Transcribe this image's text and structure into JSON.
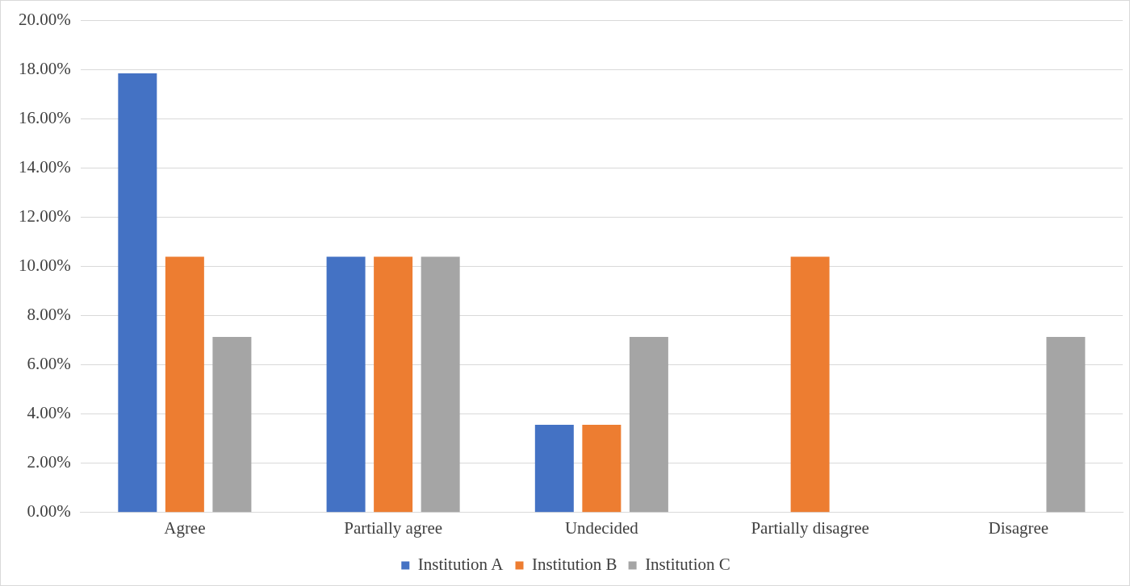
{
  "chart_data": {
    "type": "bar",
    "categories": [
      "Agree",
      "Partially agree",
      "Undecided",
      "Partially disagree",
      "Disagree"
    ],
    "series": [
      {
        "name": "Institution A",
        "color": "#4472c4",
        "values": [
          17.86,
          10.4,
          3.57,
          0,
          0
        ]
      },
      {
        "name": "Institution B",
        "color": "#ed7d31",
        "values": [
          10.4,
          10.4,
          3.57,
          10.4,
          0
        ]
      },
      {
        "name": "Institution C",
        "color": "#a5a5a5",
        "values": [
          7.14,
          10.4,
          7.14,
          0,
          7.14
        ]
      }
    ],
    "ylim": [
      0,
      20
    ],
    "yticks": [
      {
        "value": 0,
        "label": "0.00%"
      },
      {
        "value": 2,
        "label": "2.00%"
      },
      {
        "value": 4,
        "label": "4.00%"
      },
      {
        "value": 6,
        "label": "6.00%"
      },
      {
        "value": 8,
        "label": "8.00%"
      },
      {
        "value": 10,
        "label": "10.00%"
      },
      {
        "value": 12,
        "label": "12.00%"
      },
      {
        "value": 14,
        "label": "14.00%"
      },
      {
        "value": 16,
        "label": "16.00%"
      },
      {
        "value": 18,
        "label": "18.00%"
      },
      {
        "value": 20,
        "label": "20.00%"
      }
    ],
    "grid": "y",
    "legend": "bottom"
  }
}
